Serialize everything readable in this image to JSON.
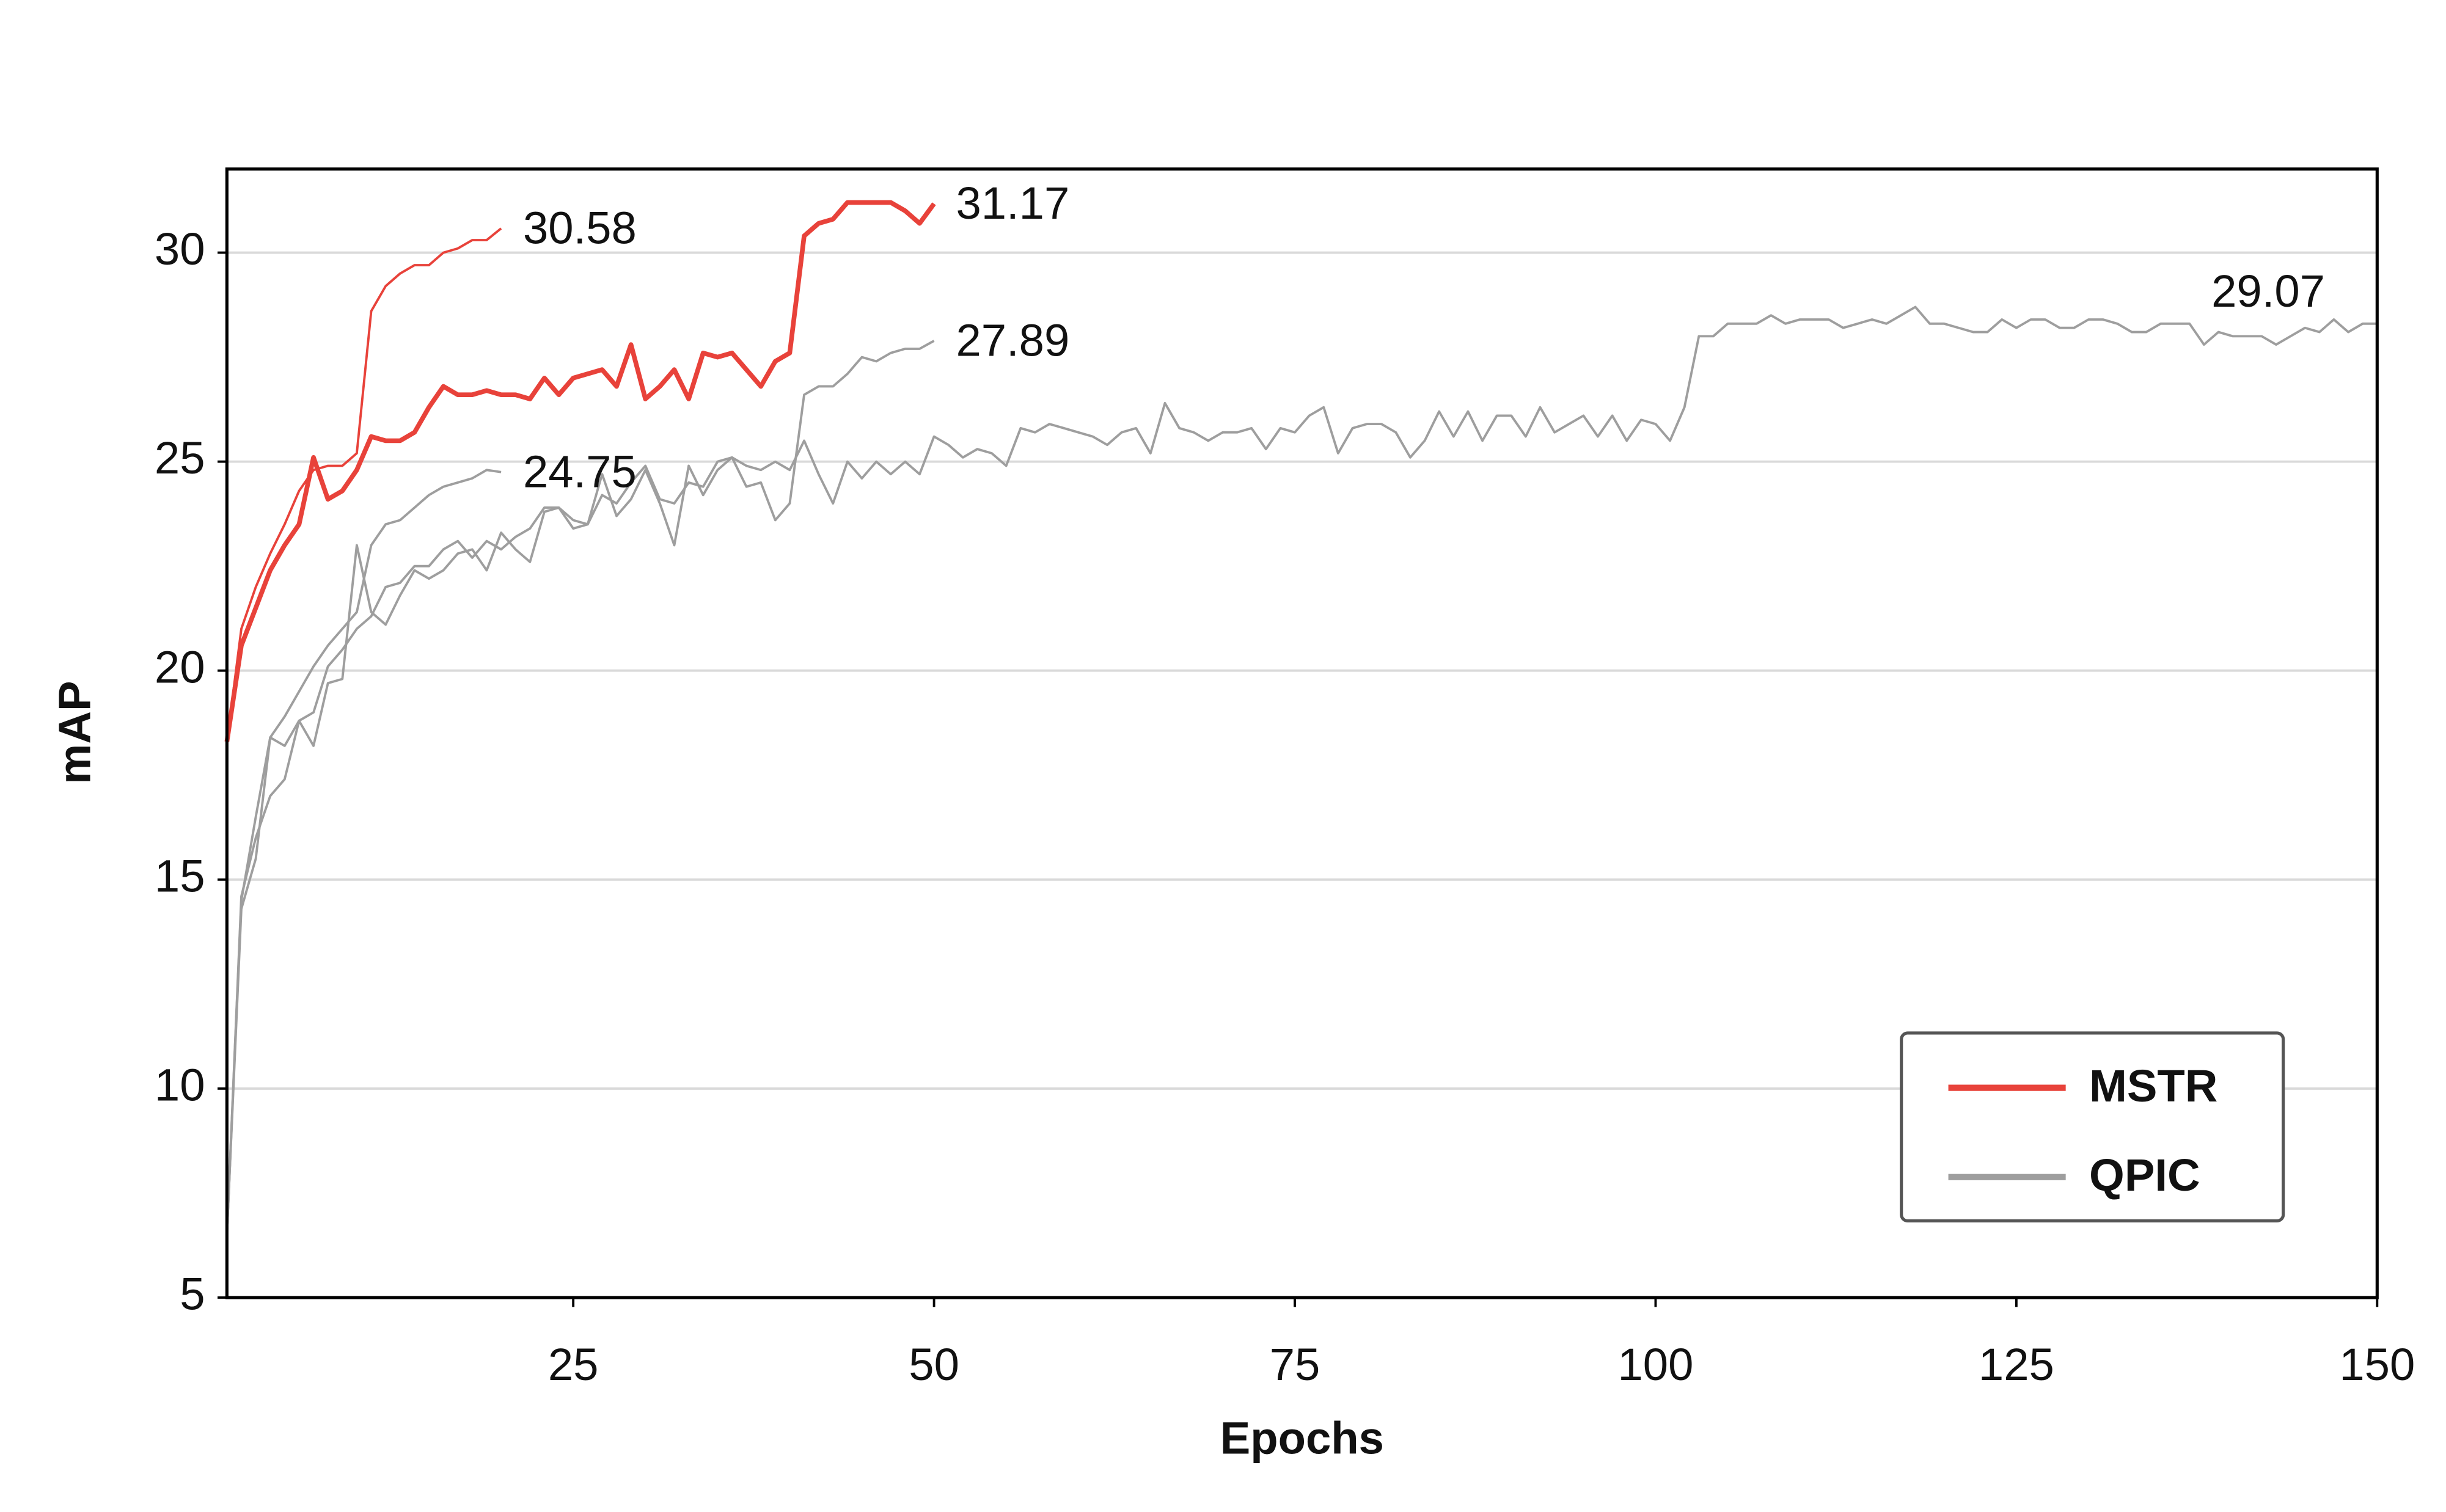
{
  "chart_data": {
    "type": "line",
    "xlabel": "Epochs",
    "ylabel": "mAP",
    "xlim": [
      1,
      150
    ],
    "xticks": [
      25,
      50,
      75,
      100,
      125,
      150
    ],
    "ylim": [
      5,
      32
    ],
    "yticks": [
      5,
      10,
      15,
      20,
      25,
      30
    ],
    "grid": true,
    "legend": "lower right",
    "series": [
      {
        "name": "MSTR",
        "color": "#e8423a",
        "linewidth": 1.5,
        "x": [
          1,
          2,
          3,
          4,
          5,
          6,
          7,
          8,
          9,
          10,
          11,
          12,
          13,
          14,
          15,
          16,
          17,
          18,
          19,
          20
        ],
        "values": [
          18.3,
          21.0,
          22.0,
          22.8,
          23.5,
          24.3,
          24.8,
          24.9,
          24.9,
          25.2,
          28.6,
          29.2,
          29.5,
          29.7,
          29.7,
          30.0,
          30.1,
          30.3,
          30.3,
          30.58
        ]
      },
      {
        "name": "MSTR",
        "color": "#e8423a",
        "linewidth": 3,
        "x": [
          1,
          2,
          3,
          4,
          5,
          6,
          7,
          8,
          9,
          10,
          11,
          12,
          13,
          14,
          15,
          16,
          17,
          18,
          19,
          20,
          21,
          22,
          23,
          24,
          25,
          26,
          27,
          28,
          29,
          30,
          31,
          32,
          33,
          34,
          35,
          36,
          37,
          38,
          39,
          40,
          41,
          42,
          43,
          44,
          45,
          46,
          47,
          48,
          49,
          50
        ],
        "values": [
          18.3,
          20.6,
          21.5,
          22.4,
          23.0,
          23.5,
          25.1,
          24.1,
          24.3,
          24.8,
          25.6,
          25.5,
          25.5,
          25.7,
          26.3,
          26.8,
          26.6,
          26.6,
          26.7,
          26.6,
          26.6,
          26.5,
          27.0,
          26.6,
          27.0,
          27.1,
          27.2,
          26.8,
          27.8,
          26.5,
          26.8,
          27.2,
          26.5,
          27.6,
          27.5,
          27.6,
          27.2,
          26.8,
          27.4,
          27.6,
          30.4,
          30.7,
          30.8,
          31.2,
          31.2,
          31.2,
          31.2,
          31.0,
          30.7,
          31.17
        ]
      },
      {
        "name": "QPIC",
        "color": "#9e9e9e",
        "linewidth": 1.5,
        "x": [
          1,
          2,
          3,
          4,
          5,
          6,
          7,
          8,
          9,
          10,
          11,
          12,
          13,
          14,
          15,
          16,
          17,
          18,
          19,
          20
        ],
        "values": [
          6.5,
          14.5,
          16.5,
          18.4,
          18.9,
          19.5,
          20.1,
          20.6,
          21.0,
          21.4,
          23.0,
          23.5,
          23.6,
          23.9,
          24.2,
          24.4,
          24.5,
          24.6,
          24.8,
          24.75
        ]
      },
      {
        "name": "QPIC",
        "color": "#9e9e9e",
        "linewidth": 1.5,
        "x": [
          1,
          2,
          3,
          4,
          5,
          6,
          7,
          8,
          9,
          10,
          11,
          12,
          13,
          14,
          15,
          16,
          17,
          18,
          19,
          20,
          21,
          22,
          23,
          24,
          25,
          26,
          27,
          28,
          29,
          30,
          31,
          32,
          33,
          34,
          35,
          36,
          37,
          38,
          39,
          40,
          41,
          42,
          43,
          44,
          45,
          46,
          47,
          48,
          49,
          50
        ],
        "values": [
          6.5,
          14.6,
          16.0,
          17.0,
          17.4,
          18.8,
          18.2,
          19.7,
          19.8,
          23.0,
          21.4,
          21.1,
          21.8,
          22.4,
          22.2,
          22.4,
          22.8,
          22.9,
          22.4,
          23.3,
          22.9,
          22.6,
          23.8,
          23.9,
          23.4,
          23.5,
          24.7,
          23.7,
          24.1,
          24.8,
          24.0,
          23.0,
          24.9,
          24.2,
          24.8,
          25.1,
          24.4,
          24.5,
          23.6,
          24.0,
          26.6,
          26.8,
          26.8,
          27.1,
          27.5,
          27.4,
          27.6,
          27.7,
          27.7,
          27.89
        ]
      },
      {
        "name": "QPIC",
        "color": "#9e9e9e",
        "linewidth": 1.5,
        "x": [
          1,
          2,
          3,
          4,
          5,
          6,
          7,
          8,
          9,
          10,
          11,
          12,
          13,
          14,
          15,
          16,
          17,
          18,
          19,
          20,
          21,
          22,
          23,
          24,
          25,
          26,
          27,
          28,
          29,
          30,
          31,
          32,
          33,
          34,
          35,
          36,
          37,
          38,
          39,
          40,
          41,
          42,
          43,
          44,
          45,
          46,
          47,
          48,
          49,
          50,
          51,
          52,
          53,
          54,
          55,
          56,
          57,
          58,
          59,
          60,
          61,
          62,
          63,
          64,
          65,
          66,
          67,
          68,
          69,
          70,
          71,
          72,
          73,
          74,
          75,
          76,
          77,
          78,
          79,
          80,
          81,
          82,
          83,
          84,
          85,
          86,
          87,
          88,
          89,
          90,
          91,
          92,
          93,
          94,
          95,
          96,
          97,
          98,
          99,
          100,
          101,
          102,
          103,
          104,
          105,
          106,
          107,
          108,
          109,
          110,
          111,
          112,
          113,
          114,
          115,
          116,
          117,
          118,
          119,
          120,
          121,
          122,
          123,
          124,
          125,
          126,
          127,
          128,
          129,
          130,
          131,
          132,
          133,
          134,
          135,
          136,
          137,
          138,
          139,
          140,
          141,
          142,
          143,
          144,
          145,
          146,
          147,
          148,
          149,
          150
        ],
        "values": [
          6.5,
          14.3,
          15.5,
          18.4,
          18.2,
          18.8,
          19.0,
          20.1,
          20.5,
          21.0,
          21.3,
          22.0,
          22.1,
          22.5,
          22.5,
          22.9,
          23.1,
          22.7,
          23.1,
          22.9,
          23.2,
          23.4,
          23.9,
          23.9,
          23.6,
          23.5,
          24.2,
          24.0,
          24.5,
          24.9,
          24.1,
          24.0,
          24.5,
          24.4,
          25.0,
          25.1,
          24.9,
          24.8,
          25.0,
          24.8,
          25.5,
          24.7,
          24.0,
          25.0,
          24.6,
          25.0,
          24.7,
          25.0,
          24.7,
          25.6,
          25.4,
          25.1,
          25.3,
          25.2,
          24.9,
          25.8,
          25.7,
          25.9,
          25.8,
          25.7,
          25.6,
          25.4,
          25.7,
          25.8,
          25.2,
          26.4,
          25.8,
          25.7,
          25.5,
          25.7,
          25.7,
          25.8,
          25.3,
          25.8,
          25.7,
          26.1,
          26.3,
          25.2,
          25.8,
          25.9,
          25.9,
          25.7,
          25.1,
          25.5,
          26.2,
          25.6,
          26.2,
          25.5,
          26.1,
          26.1,
          25.6,
          26.3,
          25.7,
          25.9,
          26.1,
          25.6,
          26.1,
          25.5,
          26.0,
          25.9,
          25.5,
          26.3,
          28.0,
          28.0,
          28.3,
          28.3,
          28.3,
          28.5,
          28.3,
          28.4,
          28.4,
          28.4,
          28.2,
          28.3,
          28.4,
          28.3,
          28.5,
          28.7,
          28.3,
          28.3,
          28.2,
          28.1,
          28.1,
          28.4,
          28.2,
          28.4,
          28.4,
          28.2,
          28.2,
          28.4,
          28.4,
          28.3,
          28.1,
          28.1,
          28.3,
          28.3,
          28.3,
          27.8,
          28.1,
          28.0,
          28.0,
          28.0,
          27.8,
          28.0,
          28.2,
          28.1,
          28.4,
          28.1,
          28.3,
          28.3
        ]
      }
    ],
    "annotations": [
      {
        "x": 20,
        "value": 30.58
      },
      {
        "x": 50,
        "value": 31.17
      },
      {
        "x": 50,
        "value": 27.89
      },
      {
        "x": 20,
        "value": 24.75
      },
      {
        "x": 137,
        "value": 29.07
      }
    ]
  }
}
